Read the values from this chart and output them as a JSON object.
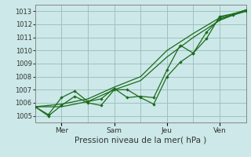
{
  "title": "",
  "xlabel": "Pression niveau de la mer( hPa )",
  "ylabel": "",
  "bg_color": "#cce8e8",
  "grid_color": "#99bbbb",
  "line_color": "#1a6b1a",
  "ylim": [
    1004.5,
    1013.5
  ],
  "yticks": [
    1005,
    1006,
    1007,
    1008,
    1009,
    1010,
    1011,
    1012,
    1013
  ],
  "xlim": [
    0,
    8
  ],
  "xtick_positions": [
    1,
    3,
    5,
    7
  ],
  "xtick_labels": [
    "Mer",
    "Sam",
    "Jeu",
    "Ven"
  ],
  "xgrid_positions": [
    1,
    2,
    3,
    4,
    5,
    6,
    7,
    8
  ],
  "line1_smooth": {
    "x": [
      0.0,
      1.0,
      2.0,
      3.0,
      4.0,
      5.0,
      6.0,
      7.0,
      8.0
    ],
    "y": [
      1005.7,
      1005.7,
      1006.1,
      1007.0,
      1007.7,
      1009.5,
      1011.0,
      1012.3,
      1013.1
    ]
  },
  "line2_smooth": {
    "x": [
      0.0,
      1.0,
      2.0,
      3.0,
      4.0,
      5.0,
      6.0,
      7.0,
      8.0
    ],
    "y": [
      1005.7,
      1005.9,
      1006.3,
      1007.2,
      1008.0,
      1010.0,
      1011.3,
      1012.5,
      1013.0
    ]
  },
  "line3_markers": {
    "x": [
      0.0,
      0.5,
      1.0,
      1.5,
      2.0,
      2.5,
      3.0,
      3.5,
      4.0,
      4.5,
      5.0,
      5.5,
      6.0,
      6.5,
      7.0,
      7.5,
      8.0
    ],
    "y": [
      1005.7,
      1005.0,
      1005.8,
      1006.5,
      1006.0,
      1005.8,
      1007.0,
      1007.0,
      1006.4,
      1005.9,
      1008.0,
      1009.1,
      1009.8,
      1010.9,
      1012.6,
      1012.8,
      1013.1
    ]
  },
  "line4_markers": {
    "x": [
      0.0,
      0.5,
      1.0,
      1.5,
      2.0,
      2.5,
      3.0,
      3.5,
      4.0,
      4.5,
      5.0,
      5.5,
      6.0,
      6.5,
      7.0,
      7.5,
      8.0
    ],
    "y": [
      1005.7,
      1005.1,
      1006.4,
      1006.9,
      1006.1,
      1006.3,
      1007.1,
      1006.4,
      1006.5,
      1006.4,
      1008.5,
      1010.4,
      1009.8,
      1011.4,
      1012.4,
      1012.7,
      1013.0
    ]
  }
}
